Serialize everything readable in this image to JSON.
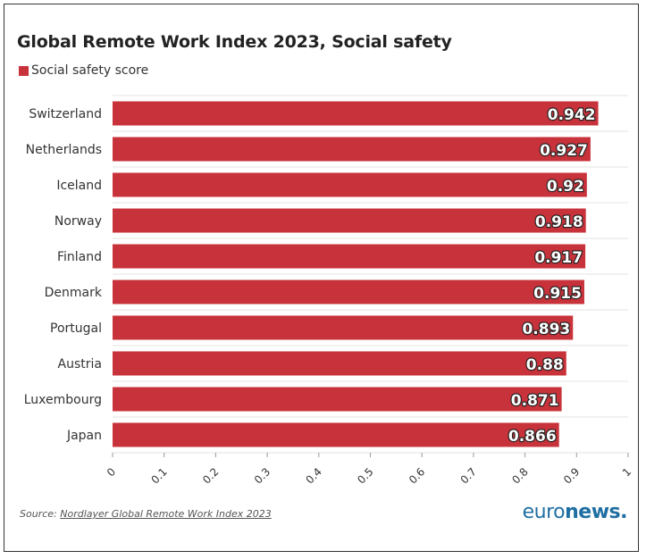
{
  "chart_data": {
    "type": "bar",
    "orientation": "horizontal",
    "title": "Global Remote Work Index 2023, Social safety",
    "series": [
      {
        "name": "Social safety score",
        "color": "#c8323a",
        "values": [
          0.942,
          0.927,
          0.92,
          0.918,
          0.917,
          0.915,
          0.893,
          0.88,
          0.871,
          0.866
        ]
      }
    ],
    "categories": [
      "Switzerland",
      "Netherlands",
      "Iceland",
      "Norway",
      "Finland",
      "Denmark",
      "Portugal",
      "Austria",
      "Luxembourg",
      "Japan"
    ],
    "value_labels": [
      "0.942",
      "0.927",
      "0.92",
      "0.918",
      "0.917",
      "0.915",
      "0.893",
      "0.88",
      "0.871",
      "0.866"
    ],
    "xlim": [
      0,
      1
    ],
    "xticks": [
      "0",
      "0.1",
      "0.2",
      "0.3",
      "0.4",
      "0.5",
      "0.6",
      "0.7",
      "0.8",
      "0.9",
      "1"
    ],
    "grid": true,
    "legend_position": "top-left"
  },
  "footer": {
    "source_prefix": "Source: ",
    "source_link": "Nordlayer Global Remote Work Index 2023",
    "brand_a": "euro",
    "brand_b": "news."
  }
}
